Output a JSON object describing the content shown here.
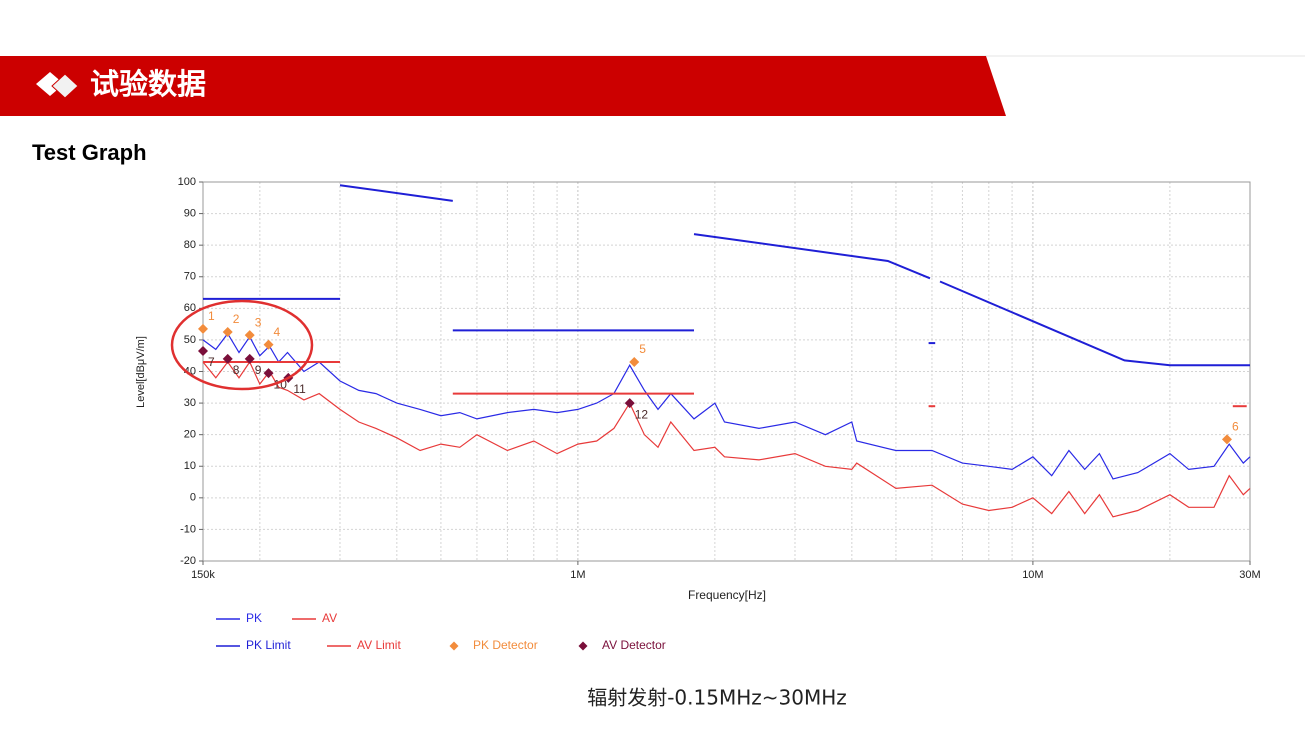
{
  "header": {
    "title": "试验数据"
  },
  "section_title": "Test Graph",
  "caption": "辐射发射-0.15MHz~30MHz",
  "chart_data": {
    "type": "line",
    "xlabel": "Frequency[Hz]",
    "ylabel": "Level[dBμV/m]",
    "xscale": "log",
    "grid": true,
    "xlim": [
      150000,
      30000000
    ],
    "xticks": [
      {
        "value": 150000,
        "label": "150k"
      },
      {
        "value": 1000000,
        "label": "1M"
      },
      {
        "value": 10000000,
        "label": "10M"
      },
      {
        "value": 30000000,
        "label": "30M"
      }
    ],
    "xminorticks": [
      200000,
      300000,
      400000,
      500000,
      600000,
      700000,
      800000,
      900000,
      2000000,
      3000000,
      4000000,
      5000000,
      6000000,
      7000000,
      8000000,
      9000000,
      20000000
    ],
    "ylim": [
      -20,
      100
    ],
    "yticks": [
      -20,
      -10,
      0,
      10,
      20,
      30,
      40,
      50,
      60,
      70,
      80,
      90,
      100
    ],
    "series": [
      {
        "name": "PK",
        "color": "#2a2ae6",
        "style": "line",
        "x": [
          150000,
          160000,
          170000,
          180000,
          190000,
          200000,
          210000,
          220000,
          230000,
          250000,
          270000,
          300000,
          330000,
          360000,
          400000,
          450000,
          500000,
          550000,
          600000,
          700000,
          800000,
          900000,
          1000000,
          1100000,
          1200000,
          1300000,
          1400000,
          1500000,
          1600000,
          1800000,
          2000000,
          2100000,
          2500000,
          3000000,
          3500000,
          4000000,
          4100000,
          5000000,
          6000000,
          7000000,
          8000000,
          9000000,
          10000000,
          11000000,
          12000000,
          13000000,
          14000000,
          15000000,
          17000000,
          20000000,
          22000000,
          25000000,
          27000000,
          29000000,
          30000000
        ],
        "values": [
          50,
          47,
          52,
          46,
          51,
          45,
          48,
          43,
          46,
          40,
          43,
          37,
          34,
          33,
          30,
          28,
          26,
          27,
          25,
          27,
          28,
          27,
          28,
          30,
          33,
          42,
          34,
          28,
          33,
          25,
          30,
          24,
          22,
          24,
          20,
          24,
          18,
          15,
          15,
          11,
          10,
          9,
          13,
          7,
          15,
          9,
          14,
          6,
          8,
          14,
          9,
          10,
          17,
          11,
          13
        ]
      },
      {
        "name": "AV",
        "color": "#e83a3a",
        "style": "line",
        "x": [
          150000,
          160000,
          170000,
          180000,
          190000,
          200000,
          210000,
          220000,
          230000,
          250000,
          270000,
          300000,
          330000,
          360000,
          400000,
          450000,
          500000,
          550000,
          600000,
          700000,
          800000,
          900000,
          1000000,
          1100000,
          1200000,
          1300000,
          1400000,
          1500000,
          1600000,
          1800000,
          2000000,
          2100000,
          2500000,
          3000000,
          3500000,
          4000000,
          4100000,
          5000000,
          6000000,
          7000000,
          8000000,
          9000000,
          10000000,
          11000000,
          12000000,
          13000000,
          14000000,
          15000000,
          17000000,
          20000000,
          22000000,
          25000000,
          27000000,
          29000000,
          30000000
        ],
        "values": [
          43,
          38,
          43,
          38,
          43,
          36,
          40,
          35,
          34,
          31,
          33,
          28,
          24,
          22,
          19,
          15,
          17,
          16,
          20,
          15,
          18,
          14,
          17,
          18,
          22,
          30,
          20,
          16,
          24,
          15,
          16,
          13,
          12,
          14,
          10,
          9,
          11,
          3,
          4,
          -2,
          -4,
          -3,
          0,
          -5,
          2,
          -5,
          1,
          -6,
          -4,
          1,
          -3,
          -3,
          7,
          1,
          3
        ]
      },
      {
        "name": "PK Limit",
        "color": "#1f1fd6",
        "style": "line",
        "x": [
          150000,
          300000,
          null,
          300000,
          531000,
          null,
          531000,
          1800000,
          null,
          1800000,
          4800000,
          5940000,
          null,
          5900000,
          6100000,
          null,
          6250000,
          15900000,
          20000000,
          30000000
        ],
        "values": [
          63,
          63,
          null,
          99,
          94,
          null,
          53,
          53,
          null,
          83.5,
          75,
          69.5,
          null,
          49,
          49,
          null,
          68.5,
          43.5,
          42,
          42
        ]
      },
      {
        "name": "AV Limit",
        "color": "#e83a3a",
        "style": "line",
        "x": [
          150000,
          300000,
          null,
          531000,
          1800000,
          null,
          5900000,
          6100000,
          null,
          27500000,
          29500000
        ],
        "values": [
          43,
          43,
          null,
          33,
          33,
          null,
          29,
          29,
          null,
          29,
          29
        ]
      },
      {
        "name": "PK Detector",
        "color": "#f28c3c",
        "style": "marker",
        "label_side": "above",
        "x": [
          150000,
          170000,
          190000,
          209000,
          1330000,
          26700000
        ],
        "values": [
          53.5,
          52.5,
          51.5,
          48.5,
          43,
          18.5
        ],
        "labels": [
          "1",
          "2",
          "3",
          "4",
          "5",
          "6"
        ]
      },
      {
        "name": "AV Detector",
        "color": "#7a0f3a",
        "style": "marker",
        "label_side": "below",
        "x": [
          150000,
          170000,
          190000,
          209000,
          231000,
          1300000
        ],
        "values": [
          46.5,
          44,
          44,
          39.5,
          38,
          30
        ],
        "labels": [
          "7",
          "8",
          "9",
          "10",
          "11",
          "12"
        ]
      }
    ]
  }
}
